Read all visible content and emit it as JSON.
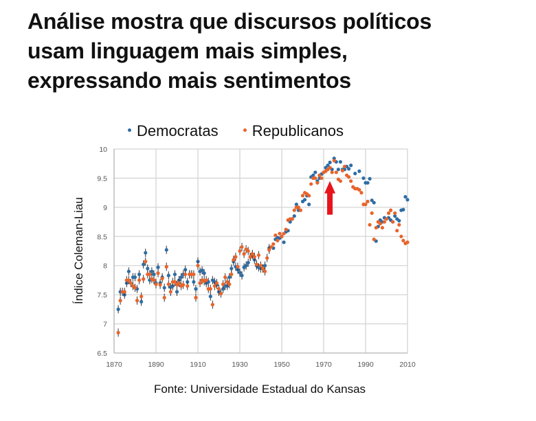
{
  "title_lines": [
    "Análise mostra que discursos políticos",
    "usam linguagem mais simples,",
    "expressando mais sentimentos"
  ],
  "source": "Fonte: Universidade Estadual do Kansas",
  "chart_data": {
    "type": "scatter",
    "title": "",
    "xlabel": "",
    "ylabel": "Índice Coleman-Liau",
    "xlim": [
      1870,
      2010
    ],
    "ylim": [
      6.5,
      10
    ],
    "xticks": [
      "1870",
      "1890",
      "1910",
      "1930",
      "1950",
      "1970",
      "1990",
      "2010"
    ],
    "yticks": [
      "6.5",
      "7",
      "7.5",
      "8",
      "8.5",
      "9",
      "9.5",
      "10"
    ],
    "grid": true,
    "legend_position": "top",
    "annotation": {
      "type": "arrow",
      "color": "#e8141c",
      "x": 1971,
      "y_from": 9.05,
      "y_to": 9.45
    },
    "series": [
      {
        "name": "Democratas",
        "color": "#2e6da4",
        "points": [
          [
            1872,
            7.25
          ],
          [
            1873,
            7.55
          ],
          [
            1875,
            7.5
          ],
          [
            1876,
            7.7
          ],
          [
            1877,
            7.9
          ],
          [
            1879,
            7.8
          ],
          [
            1880,
            7.8
          ],
          [
            1881,
            7.6
          ],
          [
            1882,
            7.85
          ],
          [
            1883,
            7.38
          ],
          [
            1884,
            8.02
          ],
          [
            1885,
            8.22
          ],
          [
            1886,
            7.95
          ],
          [
            1887,
            7.75
          ],
          [
            1888,
            7.9
          ],
          [
            1889,
            7.85
          ],
          [
            1890,
            7.7
          ],
          [
            1891,
            7.97
          ],
          [
            1892,
            7.7
          ],
          [
            1893,
            7.8
          ],
          [
            1894,
            7.62
          ],
          [
            1895,
            8.27
          ],
          [
            1896,
            7.83
          ],
          [
            1897,
            7.63
          ],
          [
            1898,
            7.65
          ],
          [
            1899,
            7.85
          ],
          [
            1900,
            7.55
          ],
          [
            1901,
            7.75
          ],
          [
            1902,
            7.8
          ],
          [
            1903,
            7.85
          ],
          [
            1904,
            7.93
          ],
          [
            1905,
            7.72
          ],
          [
            1906,
            7.85
          ],
          [
            1907,
            7.85
          ],
          [
            1908,
            7.72
          ],
          [
            1909,
            7.6
          ],
          [
            1910,
            8.07
          ],
          [
            1911,
            7.9
          ],
          [
            1912,
            7.92
          ],
          [
            1913,
            7.87
          ],
          [
            1914,
            7.7
          ],
          [
            1915,
            7.72
          ],
          [
            1916,
            7.47
          ],
          [
            1917,
            7.75
          ],
          [
            1918,
            7.72
          ],
          [
            1919,
            7.67
          ],
          [
            1920,
            7.55
          ],
          [
            1922,
            7.6
          ],
          [
            1923,
            7.65
          ],
          [
            1924,
            7.65
          ],
          [
            1925,
            7.8
          ],
          [
            1926,
            7.95
          ],
          [
            1927,
            8.07
          ],
          [
            1928,
            7.98
          ],
          [
            1929,
            7.93
          ],
          [
            1930,
            7.88
          ],
          [
            1931,
            7.83
          ],
          [
            1932,
            7.97
          ],
          [
            1933,
            8.0
          ],
          [
            1934,
            8.05
          ],
          [
            1935,
            8.15
          ],
          [
            1936,
            8.18
          ],
          [
            1937,
            8.1
          ],
          [
            1938,
            8.0
          ],
          [
            1939,
            7.97
          ],
          [
            1940,
            7.95
          ],
          [
            1941,
            7.95
          ],
          [
            1942,
            8.0
          ],
          [
            1944,
            8.3
          ],
          [
            1946,
            8.3
          ],
          [
            1947,
            8.45
          ],
          [
            1948,
            8.48
          ],
          [
            1949,
            8.47
          ],
          [
            1950,
            8.5
          ],
          [
            1951,
            8.4
          ],
          [
            1952,
            8.58
          ],
          [
            1953,
            8.6
          ],
          [
            1954,
            8.75
          ],
          [
            1955,
            8.8
          ],
          [
            1956,
            8.85
          ],
          [
            1957,
            9.05
          ],
          [
            1958,
            8.95
          ],
          [
            1960,
            9.1
          ],
          [
            1961,
            9.13
          ],
          [
            1962,
            9.2
          ],
          [
            1963,
            9.05
          ],
          [
            1964,
            9.52
          ],
          [
            1965,
            9.55
          ],
          [
            1966,
            9.6
          ],
          [
            1967,
            9.45
          ],
          [
            1968,
            9.5
          ],
          [
            1969,
            9.57
          ],
          [
            1970,
            9.6
          ],
          [
            1971,
            9.68
          ],
          [
            1972,
            9.72
          ],
          [
            1973,
            9.77
          ],
          [
            1974,
            9.65
          ],
          [
            1975,
            9.84
          ],
          [
            1976,
            9.78
          ],
          [
            1977,
            9.65
          ],
          [
            1978,
            9.78
          ],
          [
            1979,
            9.65
          ],
          [
            1980,
            9.65
          ],
          [
            1981,
            9.7
          ],
          [
            1982,
            9.66
          ],
          [
            1983,
            9.72
          ],
          [
            1985,
            9.58
          ],
          [
            1987,
            9.62
          ],
          [
            1989,
            9.5
          ],
          [
            1990,
            9.42
          ],
          [
            1991,
            9.42
          ],
          [
            1992,
            9.49
          ],
          [
            1993,
            9.12
          ],
          [
            1994,
            9.08
          ],
          [
            1995,
            8.42
          ],
          [
            1996,
            8.67
          ],
          [
            1997,
            8.78
          ],
          [
            1998,
            8.75
          ],
          [
            1999,
            8.82
          ],
          [
            2001,
            8.82
          ],
          [
            2002,
            8.78
          ],
          [
            2003,
            8.75
          ],
          [
            2004,
            8.85
          ],
          [
            2005,
            8.8
          ],
          [
            2006,
            8.77
          ],
          [
            2007,
            8.95
          ],
          [
            2008,
            8.96
          ],
          [
            2009,
            9.18
          ],
          [
            2010,
            9.13
          ]
        ]
      },
      {
        "name": "Republicanos",
        "color": "#e8632a",
        "points": [
          [
            1872,
            6.85
          ],
          [
            1873,
            7.4
          ],
          [
            1874,
            7.55
          ],
          [
            1875,
            7.55
          ],
          [
            1876,
            7.75
          ],
          [
            1877,
            7.75
          ],
          [
            1878,
            7.7
          ],
          [
            1879,
            7.65
          ],
          [
            1880,
            7.62
          ],
          [
            1881,
            7.4
          ],
          [
            1882,
            7.75
          ],
          [
            1883,
            7.47
          ],
          [
            1884,
            7.77
          ],
          [
            1885,
            8.07
          ],
          [
            1886,
            7.85
          ],
          [
            1887,
            7.85
          ],
          [
            1888,
            7.77
          ],
          [
            1889,
            7.75
          ],
          [
            1890,
            7.68
          ],
          [
            1891,
            7.87
          ],
          [
            1892,
            7.67
          ],
          [
            1893,
            7.78
          ],
          [
            1894,
            7.45
          ],
          [
            1895,
            7.98
          ],
          [
            1896,
            7.68
          ],
          [
            1897,
            7.55
          ],
          [
            1898,
            7.72
          ],
          [
            1899,
            7.72
          ],
          [
            1900,
            7.67
          ],
          [
            1901,
            7.7
          ],
          [
            1902,
            7.65
          ],
          [
            1903,
            7.67
          ],
          [
            1904,
            7.85
          ],
          [
            1905,
            7.65
          ],
          [
            1906,
            7.85
          ],
          [
            1907,
            7.85
          ],
          [
            1908,
            7.85
          ],
          [
            1909,
            7.45
          ],
          [
            1910,
            8.0
          ],
          [
            1911,
            7.7
          ],
          [
            1912,
            7.75
          ],
          [
            1913,
            7.73
          ],
          [
            1914,
            7.75
          ],
          [
            1915,
            7.6
          ],
          [
            1916,
            7.6
          ],
          [
            1917,
            7.33
          ],
          [
            1918,
            7.65
          ],
          [
            1919,
            7.7
          ],
          [
            1920,
            7.6
          ],
          [
            1921,
            7.52
          ],
          [
            1922,
            7.68
          ],
          [
            1923,
            7.8
          ],
          [
            1924,
            7.72
          ],
          [
            1925,
            7.68
          ],
          [
            1926,
            7.85
          ],
          [
            1927,
            8.1
          ],
          [
            1928,
            8.15
          ],
          [
            1929,
            7.98
          ],
          [
            1930,
            8.25
          ],
          [
            1931,
            8.32
          ],
          [
            1932,
            8.2
          ],
          [
            1933,
            8.28
          ],
          [
            1934,
            8.25
          ],
          [
            1935,
            8.15
          ],
          [
            1936,
            8.2
          ],
          [
            1937,
            8.15
          ],
          [
            1938,
            8.02
          ],
          [
            1939,
            8.18
          ],
          [
            1940,
            8.0
          ],
          [
            1941,
            7.95
          ],
          [
            1942,
            7.9
          ],
          [
            1943,
            8.13
          ],
          [
            1944,
            8.27
          ],
          [
            1945,
            8.32
          ],
          [
            1946,
            8.37
          ],
          [
            1947,
            8.52
          ],
          [
            1948,
            8.43
          ],
          [
            1949,
            8.55
          ],
          [
            1950,
            8.5
          ],
          [
            1951,
            8.55
          ],
          [
            1952,
            8.62
          ],
          [
            1953,
            8.78
          ],
          [
            1954,
            8.8
          ],
          [
            1955,
            8.8
          ],
          [
            1956,
            8.95
          ],
          [
            1957,
            9.0
          ],
          [
            1958,
            9.0
          ],
          [
            1959,
            8.95
          ],
          [
            1960,
            9.2
          ],
          [
            1961,
            9.25
          ],
          [
            1962,
            9.23
          ],
          [
            1963,
            9.2
          ],
          [
            1964,
            9.4
          ],
          [
            1965,
            9.5
          ],
          [
            1966,
            9.5
          ],
          [
            1967,
            9.42
          ],
          [
            1968,
            9.55
          ],
          [
            1969,
            9.5
          ],
          [
            1970,
            9.6
          ],
          [
            1971,
            9.62
          ],
          [
            1972,
            9.65
          ],
          [
            1973,
            9.68
          ],
          [
            1974,
            9.6
          ],
          [
            1975,
            9.8
          ],
          [
            1976,
            9.6
          ],
          [
            1977,
            9.48
          ],
          [
            1978,
            9.45
          ],
          [
            1979,
            9.63
          ],
          [
            1980,
            9.7
          ],
          [
            1981,
            9.55
          ],
          [
            1982,
            9.52
          ],
          [
            1983,
            9.45
          ],
          [
            1984,
            9.35
          ],
          [
            1985,
            9.32
          ],
          [
            1986,
            9.32
          ],
          [
            1987,
            9.3
          ],
          [
            1988,
            9.25
          ],
          [
            1989,
            9.05
          ],
          [
            1990,
            9.05
          ],
          [
            1991,
            9.1
          ],
          [
            1992,
            8.7
          ],
          [
            1993,
            8.9
          ],
          [
            1994,
            8.45
          ],
          [
            1995,
            8.65
          ],
          [
            1996,
            8.75
          ],
          [
            1997,
            8.72
          ],
          [
            1998,
            8.65
          ],
          [
            1999,
            8.75
          ],
          [
            2000,
            8.8
          ],
          [
            2001,
            8.9
          ],
          [
            2002,
            8.95
          ],
          [
            2003,
            8.75
          ],
          [
            2004,
            8.9
          ],
          [
            2005,
            8.6
          ],
          [
            2006,
            8.7
          ],
          [
            2007,
            8.5
          ],
          [
            2008,
            8.43
          ],
          [
            2009,
            8.38
          ],
          [
            2010,
            8.4
          ]
        ]
      }
    ]
  }
}
